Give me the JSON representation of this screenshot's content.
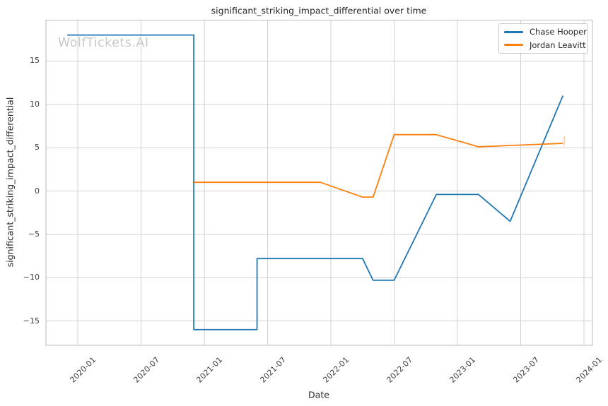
{
  "title": "significant_striking_impact_differential over time",
  "watermark": "WolfTickets.AI",
  "x_axis": {
    "label": "Date",
    "ticks": [
      "2020-01",
      "2020-07",
      "2021-01",
      "2021-07",
      "2022-01",
      "2022-07",
      "2023-01",
      "2023-07",
      "2024-01"
    ]
  },
  "y_axis": {
    "label": "significant_striking_impact_differential",
    "ticks": [
      {
        "v": 15,
        "label": "15"
      },
      {
        "v": 10,
        "label": "10"
      },
      {
        "v": 5,
        "label": "5"
      },
      {
        "v": 0,
        "label": "0"
      },
      {
        "v": -5,
        "label": "−5"
      },
      {
        "v": -10,
        "label": "−10"
      },
      {
        "v": -15,
        "label": "−15"
      }
    ]
  },
  "chart_data": {
    "type": "line",
    "title": "significant_striking_impact_differential over time",
    "xlabel": "Date",
    "ylabel": "significant_striking_impact_differential",
    "xlim": [
      "2019-10",
      "2024-02"
    ],
    "ylim": [
      -17.8,
      19.8
    ],
    "grid": true,
    "legend_position": "top-right",
    "series": [
      {
        "name": "Chase Hooper",
        "color": "#1f77b4",
        "points": [
          [
            "2019-12",
            18
          ],
          [
            "2020-12",
            18
          ],
          [
            "2020-12",
            -16
          ],
          [
            "2021-06",
            -16
          ],
          [
            "2021-06",
            -7.8
          ],
          [
            "2022-04",
            -7.8
          ],
          [
            "2022-05",
            -10.3
          ],
          [
            "2022-07",
            -10.3
          ],
          [
            "2022-11",
            -0.4
          ],
          [
            "2023-03",
            -0.4
          ],
          [
            "2023-06",
            -3.5
          ],
          [
            "2023-11",
            11
          ]
        ]
      },
      {
        "name": "Jordan Leavitt",
        "color": "#ff7f0e",
        "end_tick": true,
        "points": [
          [
            "2020-12",
            1
          ],
          [
            "2021-12",
            1
          ],
          [
            "2022-04",
            -0.7
          ],
          [
            "2022-05",
            -0.7
          ],
          [
            "2022-07",
            6.5
          ],
          [
            "2022-11",
            6.5
          ],
          [
            "2023-03",
            5.1
          ],
          [
            "2023-11",
            5.5
          ]
        ]
      }
    ]
  }
}
